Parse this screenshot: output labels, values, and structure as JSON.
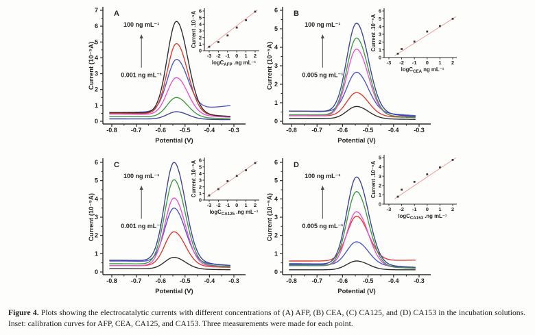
{
  "caption": {
    "label": "Figure 4.",
    "text": "Plots showing the electrocatalytic currents with different concentrations of (A) AFP, (B) CEA, (C) CA125, and (D) CA153 in the incubation solutions. Inset: calibration curves for AFP, CEA, CA125, and CA153. Three measurements were made for each point."
  },
  "style": {
    "background": "#fdfdfc",
    "axis_color": "#2b2b2b",
    "fit_line_color": "#f2a6a6",
    "marker_color": "#3a3a3a",
    "arrow_color": "#4a4a4a"
  },
  "chart_data": [
    {
      "type": "line",
      "panel": "A",
      "analyte": "AFP",
      "xlabel": "Potential (V)",
      "ylabel": "Current (10⁻⁵A)",
      "xticks": [
        -0.8,
        -0.7,
        -0.6,
        -0.5,
        -0.4,
        -0.3
      ],
      "yticks": [
        0,
        1,
        2,
        3,
        4,
        5,
        6,
        7
      ],
      "xlim": [
        -0.85,
        -0.25
      ],
      "ylim": [
        0,
        7
      ],
      "peak_center": -0.535,
      "annotation_high": "100 ng mL⁻¹",
      "annotation_low": "0.001 ng mL⁻¹",
      "curves": [
        {
          "color": "#2e2e2e",
          "peak": 6.3,
          "base_left": 0.55,
          "base_right": 0.3
        },
        {
          "color": "#e23a2c",
          "peak": 4.9,
          "base_left": 0.5,
          "base_right": 0.3
        },
        {
          "color": "#4f57cf",
          "peak": 3.9,
          "base_left": 0.55,
          "base_right": 1.0
        },
        {
          "color": "#ef52d5",
          "peak": 2.75,
          "base_left": 0.45,
          "base_right": 0.25
        },
        {
          "color": "#3e9b43",
          "peak": 1.5,
          "base_left": 0.3,
          "base_right": 0.15
        },
        {
          "color": "#3f4496",
          "peak": 0.6,
          "base_left": 0.15,
          "base_right": 0.1
        }
      ],
      "inset": {
        "type": "scatter",
        "ylabel": "Current .10⁻⁵A",
        "xlabel_prefix": "logC",
        "xlabel_sub": "AFP",
        "xlabel_suffix": " .ng mL⁻¹",
        "xticks": [
          -3,
          -2,
          -1,
          0,
          1,
          2
        ],
        "yticks": [
          0,
          1,
          2,
          3,
          4,
          5,
          6
        ],
        "ylim": [
          0,
          6
        ],
        "x": [
          -3,
          -2,
          -1,
          0,
          1,
          2
        ],
        "y": [
          0.6,
          1.3,
          2.3,
          3.5,
          4.6,
          5.9
        ]
      }
    },
    {
      "type": "line",
      "panel": "B",
      "analyte": "CEA",
      "xlabel": "Potential (V)",
      "ylabel": "Current (10⁻⁵A)",
      "xticks": [
        -0.8,
        -0.7,
        -0.6,
        -0.5,
        -0.4,
        -0.3
      ],
      "yticks": [
        0,
        1,
        2,
        3,
        4,
        5,
        6
      ],
      "xlim": [
        -0.85,
        -0.25
      ],
      "ylim": [
        0,
        6
      ],
      "peak_center": -0.545,
      "annotation_high": "100 ng mL⁻¹",
      "annotation_low": "0.005 ng mL⁻¹",
      "curves": [
        {
          "color": "#3f4496",
          "peak": 5.3,
          "base_left": 0.55,
          "base_right": 0.25
        },
        {
          "color": "#3e9b43",
          "peak": 4.5,
          "base_left": 0.35,
          "base_right": 0.2
        },
        {
          "color": "#ef52d5",
          "peak": 3.9,
          "base_left": 0.3,
          "base_right": 0.25
        },
        {
          "color": "#4f57cf",
          "peak": 2.65,
          "base_left": 0.55,
          "base_right": 0.3
        },
        {
          "color": "#e23a2c",
          "peak": 1.55,
          "base_left": 0.3,
          "base_right": 0.2
        },
        {
          "color": "#2e2e2e",
          "peak": 0.8,
          "base_left": 0.15,
          "base_right": 0.1
        }
      ],
      "inset": {
        "type": "scatter",
        "ylabel": "Current .10⁻⁵A",
        "xlabel_prefix": "logC",
        "xlabel_sub": "CEA",
        "xlabel_suffix": " ng mL⁻¹",
        "xticks": [
          -3,
          -2,
          -1,
          0,
          1,
          2
        ],
        "yticks": [
          0,
          1,
          2,
          3,
          4,
          5,
          6
        ],
        "ylim": [
          0,
          6
        ],
        "x": [
          -2.3,
          -2,
          -1,
          0,
          1,
          2
        ],
        "y": [
          0.5,
          1.1,
          2.05,
          3.35,
          4.05,
          5.0
        ]
      }
    },
    {
      "type": "line",
      "panel": "C",
      "analyte": "CA125",
      "xlabel": "Potential (V)",
      "ylabel": "Current (10⁻⁵A)",
      "xticks": [
        -0.8,
        -0.7,
        -0.6,
        -0.5,
        -0.4,
        -0.3
      ],
      "yticks": [
        0,
        1,
        2,
        3,
        4,
        5,
        6
      ],
      "xlim": [
        -0.85,
        -0.25
      ],
      "ylim": [
        0,
        6
      ],
      "peak_center": -0.545,
      "annotation_high": "100 ng mL⁻¹",
      "annotation_low": "0.001 ng mL⁻¹",
      "curves": [
        {
          "color": "#3f4496",
          "peak": 6.0,
          "base_left": 0.65,
          "base_right": 0.35
        },
        {
          "color": "#3e9b43",
          "peak": 5.05,
          "base_left": 0.45,
          "base_right": 0.3
        },
        {
          "color": "#ef52d5",
          "peak": 4.05,
          "base_left": 0.35,
          "base_right": 0.3
        },
        {
          "color": "#4f57cf",
          "peak": 3.5,
          "base_left": 0.6,
          "base_right": 0.35
        },
        {
          "color": "#e23a2c",
          "peak": 2.2,
          "base_left": 0.35,
          "base_right": 0.25
        },
        {
          "color": "#2e2e2e",
          "peak": 0.8,
          "base_left": 0.18,
          "base_right": 0.12
        }
      ],
      "inset": {
        "type": "scatter",
        "ylabel": "Current .10⁻⁵A",
        "xlabel_prefix": "logC",
        "xlabel_sub": "CA125",
        "xlabel_suffix": " .ng mL⁻¹",
        "xticks": [
          -3,
          -2,
          -1,
          0,
          1,
          2
        ],
        "yticks": [
          0,
          1,
          2,
          3,
          4,
          5,
          6
        ],
        "ylim": [
          0,
          6
        ],
        "x": [
          -3,
          -2,
          -1,
          0,
          1,
          2
        ],
        "y": [
          0.7,
          1.65,
          2.85,
          3.65,
          4.5,
          5.6
        ]
      }
    },
    {
      "type": "line",
      "panel": "D",
      "analyte": "CA153",
      "xlabel": "Potential (V)",
      "ylabel": "Current (10⁻⁵A)",
      "xticks": [
        -0.8,
        -0.7,
        -0.6,
        -0.5,
        -0.4,
        -0.3
      ],
      "yticks": [
        0,
        1,
        2,
        3,
        4,
        5,
        6
      ],
      "xlim": [
        -0.85,
        -0.25
      ],
      "ylim": [
        0,
        6
      ],
      "peak_center": -0.545,
      "annotation_high": "100 ng mL⁻¹",
      "annotation_low": "0.005 ng mL⁻¹",
      "curves": [
        {
          "color": "#3f4496",
          "peak": 5.2,
          "base_left": 0.45,
          "base_right": 0.25
        },
        {
          "color": "#3e9b43",
          "peak": 4.4,
          "base_left": 0.35,
          "base_right": 0.2
        },
        {
          "color": "#ef52d5",
          "peak": 3.3,
          "base_left": 0.35,
          "base_right": 0.2
        },
        {
          "color": "#e23a2c",
          "peak": 3.05,
          "base_left": 0.6,
          "base_right": 0.65
        },
        {
          "color": "#4f57cf",
          "peak": 1.65,
          "base_left": 0.4,
          "base_right": 0.25
        },
        {
          "color": "#2e2e2e",
          "peak": 0.6,
          "base_left": 0.12,
          "base_right": 0.12
        }
      ],
      "inset": {
        "type": "scatter",
        "ylabel": "Current .10⁻⁵A",
        "xlabel_prefix": "logC",
        "xlabel_sub": "CA153",
        "xlabel_suffix": " .ng mL⁻¹",
        "xticks": [
          -3,
          -2,
          -1,
          0,
          1,
          2
        ],
        "yticks": [
          0,
          1,
          2,
          3,
          4,
          5
        ],
        "ylim": [
          0,
          5
        ],
        "x": [
          -2.3,
          -2,
          -1,
          0,
          1,
          2
        ],
        "y": [
          0.8,
          1.55,
          2.4,
          3.2,
          3.95,
          4.75
        ]
      }
    }
  ]
}
